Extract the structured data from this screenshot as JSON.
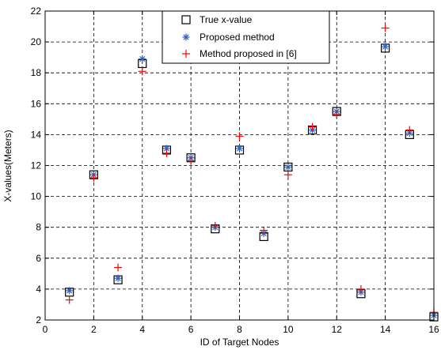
{
  "chart_data": {
    "type": "scatter",
    "xlabel": "ID of Target Nodes",
    "ylabel": "X-values(Meters)",
    "xlim": [
      0,
      16
    ],
    "ylim": [
      2,
      22
    ],
    "xticks": [
      0,
      2,
      4,
      6,
      8,
      10,
      12,
      14,
      16
    ],
    "yticks": [
      2,
      4,
      6,
      8,
      10,
      12,
      14,
      16,
      18,
      20,
      22
    ],
    "grid": true,
    "legend_position": "top-center",
    "series": [
      {
        "name": "True x-value",
        "marker": "square",
        "color": "#000000",
        "x": [
          1,
          2,
          3,
          4,
          5,
          6,
          7,
          8,
          9,
          10,
          11,
          12,
          13,
          14,
          15,
          16
        ],
        "y": [
          3.8,
          11.4,
          4.6,
          18.6,
          13.0,
          12.5,
          7.9,
          13.0,
          7.4,
          11.9,
          14.3,
          15.5,
          3.7,
          19.6,
          14.0,
          2.2
        ]
      },
      {
        "name": "Proposed method",
        "marker": "asterisk",
        "color": "#3060c0",
        "x": [
          1,
          2,
          3,
          4,
          5,
          6,
          7,
          8,
          9,
          10,
          11,
          12,
          13,
          14,
          15,
          16
        ],
        "y": [
          3.9,
          11.4,
          4.7,
          18.9,
          13.1,
          12.5,
          8.0,
          13.1,
          7.6,
          11.9,
          14.3,
          15.5,
          3.8,
          19.7,
          14.1,
          2.3
        ]
      },
      {
        "name": "Method proposed in [6]",
        "marker": "plus",
        "color": "#ff0000",
        "x": [
          1,
          2,
          3,
          4,
          5,
          6,
          7,
          8,
          9,
          10,
          11,
          12,
          13,
          14,
          15,
          16
        ],
        "y": [
          3.3,
          11.2,
          5.4,
          18.1,
          12.8,
          12.3,
          8.1,
          13.9,
          7.8,
          11.4,
          14.5,
          15.3,
          4.0,
          20.9,
          14.3,
          2.5
        ]
      }
    ]
  }
}
